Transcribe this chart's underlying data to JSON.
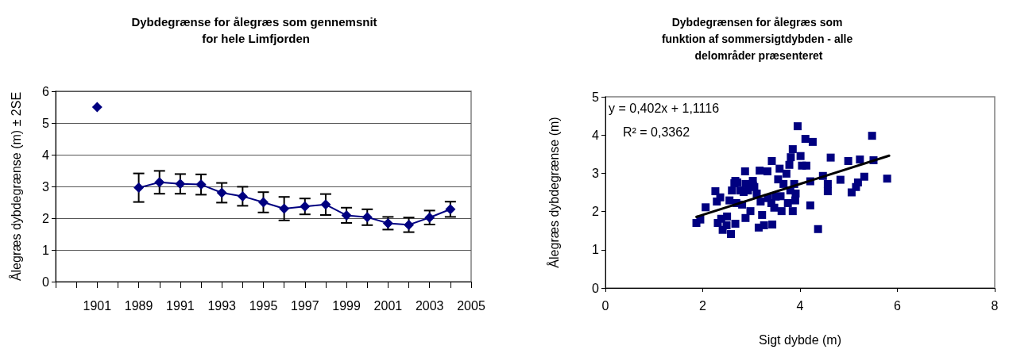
{
  "chart_data": [
    {
      "type": "line",
      "title": "Dybdegrænse for ålegræs som gennemsnit for hele Limfjorden",
      "ylabel": "Ålegræs dybdegrænse (m) ± 2SE",
      "categories": [
        null,
        null,
        "1901",
        null,
        "1989",
        null,
        "1991",
        null,
        "1993",
        null,
        "1995",
        null,
        "1997",
        null,
        "1999",
        null,
        "2001",
        null,
        "2003",
        null,
        "2005"
      ],
      "series": [
        {
          "color": "#000080",
          "values": [
            null,
            null,
            5.5,
            null,
            2.96,
            3.13,
            3.08,
            3.06,
            2.8,
            2.69,
            2.5,
            2.3,
            2.37,
            2.43,
            2.09,
            2.03,
            1.84,
            1.79,
            2.02,
            2.28,
            null
          ],
          "errors": [
            null,
            null,
            null,
            null,
            0.45,
            0.36,
            0.31,
            0.32,
            0.31,
            0.3,
            0.32,
            0.37,
            0.25,
            0.33,
            0.24,
            0.25,
            0.2,
            0.23,
            0.22,
            0.24,
            null
          ]
        }
      ],
      "ylim": [
        0,
        6
      ],
      "yticks": [
        0,
        1,
        2,
        3,
        4,
        5,
        6
      ],
      "grid": "y",
      "marker": "diamond",
      "line_style": "solid"
    },
    {
      "type": "scatter",
      "title": "Dybdegrænsen for ålegræs som funktion af sommersigtdybden - alle delområder præsenteret",
      "xlabel": "Sigt dybde (m)",
      "ylabel": "Ålegræs dybdegrænse (m)",
      "annotations": [
        "y = 0,402x + 1,1116",
        "R² = 0,3362"
      ],
      "series": [
        {
          "color": "#000080",
          "marker": "square",
          "x": [
            1.87,
            1.95,
            2.06,
            2.26,
            2.29,
            2.36,
            2.31,
            2.38,
            2.41,
            2.49,
            2.5,
            2.55,
            2.58,
            2.6,
            2.65,
            2.67,
            2.69,
            2.71,
            2.77,
            2.81,
            2.87,
            2.88,
            2.88,
            2.93,
            2.98,
            3.03,
            3.06,
            3.11,
            3.15,
            3.17,
            3.19,
            3.22,
            3.26,
            3.33,
            3.34,
            3.41,
            3.42,
            3.43,
            3.47,
            3.55,
            3.58,
            3.6,
            3.62,
            3.66,
            3.72,
            3.75,
            3.78,
            3.8,
            3.81,
            3.85,
            3.85,
            3.88,
            3.9,
            3.91,
            3.95,
            4.01,
            4.04,
            4.11,
            4.13,
            4.21,
            4.21,
            4.26,
            4.37,
            4.47,
            4.57,
            4.57,
            4.63,
            4.83,
            4.99,
            5.06,
            5.15,
            5.19,
            5.23,
            5.32,
            5.48,
            5.51,
            5.79,
            2.67,
            2.84,
            3.03,
            3.5
          ],
          "values": [
            1.7,
            1.79,
            2.11,
            2.53,
            2.26,
            2.37,
            1.7,
            1.81,
            1.52,
            1.64,
            1.87,
            2.29,
            1.41,
            2.55,
            2.74,
            1.68,
            2.22,
            2.76,
            2.55,
            2.18,
            3.05,
            2.72,
            1.83,
            2.55,
            2.01,
            2.8,
            2.64,
            2.47,
            1.58,
            3.07,
            2.26,
            1.91,
            1.64,
            3.05,
            2.35,
            2.22,
            3.32,
            1.66,
            2.1,
            2.84,
            3.12,
            2.4,
            2.01,
            2.72,
            2.99,
            2.22,
            3.22,
            2.55,
            3.42,
            3.63,
            2.01,
            2.72,
            2.29,
            2.47,
            4.23,
            3.45,
            3.2,
            3.9,
            3.2,
            2.79,
            2.16,
            3.82,
            1.54,
            2.93,
            2.72,
            2.53,
            3.41,
            2.83,
            3.32,
            2.5,
            2.64,
            2.76,
            3.36,
            2.91,
            3.98,
            3.34,
            2.86,
            2.8,
            2.51,
            2.68,
            2.39
          ]
        },
        {
          "type": "line",
          "color": "#000000",
          "marker": "none",
          "x": [
            1.87,
            5.83
          ],
          "values": [
            1.86,
            3.46
          ]
        }
      ],
      "xlim": [
        0,
        8
      ],
      "xticks": [
        0,
        2,
        4,
        6,
        8
      ],
      "ylim": [
        0,
        5
      ],
      "yticks": [
        0,
        1,
        2,
        3,
        4,
        5
      ],
      "grid": false
    }
  ]
}
